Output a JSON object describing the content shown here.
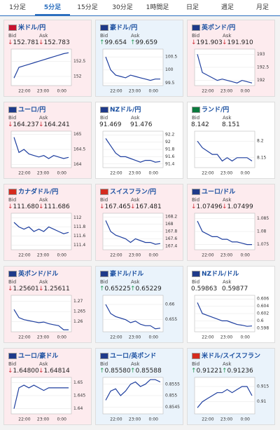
{
  "tabs": [
    "1分足",
    "5分足",
    "15分足",
    "30分足",
    "1時間足",
    "日足",
    "週足",
    "月足"
  ],
  "active_tab": 1,
  "labels": {
    "bid": "Bid",
    "ask": "Ask"
  },
  "xtick_labels": [
    "22:00",
    "23:00",
    "0:00"
  ],
  "cards": [
    {
      "name": "米ドル/円",
      "arrow": "↓",
      "trend": "down",
      "bid": "152.781",
      "ask": "152.783",
      "ylim": [
        151.7,
        152.9
      ],
      "yticks": [
        152,
        152.5
      ],
      "values": [
        151.95,
        152.3,
        152.35,
        152.4,
        152.45,
        152.5,
        152.55,
        152.6,
        152.65,
        152.7,
        152.75,
        152.78
      ]
    },
    {
      "name": "豪ドル/円",
      "arrow": "↑",
      "trend": "up",
      "bid": "99.654",
      "ask": "99.659",
      "ylim": [
        99.4,
        100.8
      ],
      "yticks": [
        99.5,
        100,
        100.5
      ],
      "values": [
        100.5,
        100.0,
        99.8,
        99.75,
        99.7,
        99.8,
        99.75,
        99.7,
        99.65,
        99.6,
        99.65,
        99.65
      ]
    },
    {
      "name": "英ポンド/円",
      "arrow": "↓",
      "trend": "down",
      "bid": "191.903",
      "ask": "191.910",
      "ylim": [
        191.8,
        193.2
      ],
      "yticks": [
        192,
        192.5,
        193
      ],
      "values": [
        193.0,
        192.3,
        192.2,
        192.1,
        192.0,
        192.05,
        192.0,
        191.95,
        191.9,
        192.0,
        191.95,
        191.9
      ]
    },
    {
      "name": "ユーロ/円",
      "arrow": "↓",
      "trend": "down",
      "bid": "164.237",
      "ask": "164.241",
      "ylim": [
        163.9,
        165.1
      ],
      "yticks": [
        164,
        164.5,
        165
      ],
      "values": [
        164.9,
        164.4,
        164.5,
        164.35,
        164.3,
        164.25,
        164.3,
        164.2,
        164.3,
        164.25,
        164.2,
        164.24
      ]
    },
    {
      "name": "NZドル/円",
      "trend": "none",
      "bid": "91.469",
      "ask": "91.476",
      "ylim": [
        91.3,
        92.3
      ],
      "yticks": [
        91.4,
        91.6,
        91.8,
        92,
        92.2
      ],
      "values": [
        92.1,
        91.9,
        91.7,
        91.6,
        91.6,
        91.55,
        91.5,
        91.45,
        91.5,
        91.5,
        91.45,
        91.47
      ]
    },
    {
      "name": "ランド/円",
      "trend": "none",
      "bid": "8.142",
      "ask": "8.151",
      "ylim": [
        8.12,
        8.23
      ],
      "yticks": [
        8.15,
        8.2
      ],
      "values": [
        8.2,
        8.18,
        8.17,
        8.16,
        8.16,
        8.14,
        8.15,
        8.14,
        8.15,
        8.15,
        8.15,
        8.14
      ]
    },
    {
      "name": "カナダドル/円",
      "arrow": "↓",
      "trend": "down",
      "bid": "111.680",
      "ask": "111.686",
      "ylim": [
        111.3,
        112.1
      ],
      "yticks": [
        111.4,
        111.6,
        111.8,
        112
      ],
      "values": [
        111.9,
        111.8,
        111.75,
        111.8,
        111.7,
        111.75,
        111.7,
        111.8,
        111.75,
        111.7,
        111.65,
        111.68
      ]
    },
    {
      "name": "スイスフラン/円",
      "arrow": "↓",
      "trend": "down",
      "bid": "167.465",
      "ask": "167.481",
      "ylim": [
        167.3,
        168.3
      ],
      "yticks": [
        167.4,
        167.6,
        167.8,
        168,
        168.2
      ],
      "values": [
        168.1,
        167.8,
        167.7,
        167.65,
        167.6,
        167.5,
        167.6,
        167.55,
        167.5,
        167.5,
        167.45,
        167.47
      ]
    },
    {
      "name": "ユーロ/ドル",
      "arrow": "↓",
      "trend": "down",
      "bid": "1.07496",
      "ask": "1.07499",
      "ylim": [
        1.073,
        1.087
      ],
      "yticks": [
        1.075,
        1.08,
        1.085
      ],
      "values": [
        1.084,
        1.08,
        1.079,
        1.078,
        1.078,
        1.077,
        1.077,
        1.076,
        1.076,
        1.0755,
        1.075,
        1.075
      ]
    },
    {
      "name": "英ポンド/ドル",
      "arrow": "↓",
      "trend": "down",
      "bid": "1.25601",
      "ask": "1.25611",
      "ylim": [
        1.255,
        1.273
      ],
      "yticks": [
        1.26,
        1.265,
        1.27
      ],
      "values": [
        1.266,
        1.262,
        1.261,
        1.2605,
        1.26,
        1.2595,
        1.2598,
        1.259,
        1.2585,
        1.258,
        1.256,
        1.256
      ]
    },
    {
      "name": "豪ドル/ドル",
      "arrow": "↑",
      "trend": "up",
      "bid": "0.65225",
      "ask": "0.65229",
      "ylim": [
        0.651,
        0.663
      ],
      "yticks": [
        0.655,
        0.66
      ],
      "values": [
        0.66,
        0.657,
        0.656,
        0.6555,
        0.655,
        0.654,
        0.6545,
        0.6535,
        0.653,
        0.653,
        0.652,
        0.6522
      ]
    },
    {
      "name": "NZドル/ドル",
      "trend": "none",
      "bid": "0.59863",
      "ask": "0.59877",
      "ylim": [
        0.597,
        0.607
      ],
      "yticks": [
        0.598,
        0.6,
        0.602,
        0.604,
        0.606
      ],
      "values": [
        0.605,
        0.602,
        0.6015,
        0.601,
        0.6005,
        0.6,
        0.6,
        0.5995,
        0.599,
        0.5988,
        0.5985,
        0.5986
      ]
    },
    {
      "name": "ユーロ/豪ドル",
      "arrow": "↓",
      "trend": "down",
      "bid": "1.64800",
      "ask": "1.64814",
      "ylim": [
        1.638,
        1.652
      ],
      "yticks": [
        1.64,
        1.645,
        1.65
      ],
      "values": [
        1.64,
        1.648,
        1.649,
        1.648,
        1.649,
        1.648,
        1.647,
        1.648,
        1.648,
        1.648,
        1.648,
        1.648
      ]
    },
    {
      "name": "ユーロ/英ポンド",
      "arrow": "↑",
      "trend": "up",
      "bid": "0.85580",
      "ask": "0.85588",
      "ylim": [
        0.8542,
        0.8558
      ],
      "yticks": [
        0.8545,
        0.855,
        0.8555
      ],
      "values": [
        0.8548,
        0.8552,
        0.8553,
        0.855,
        0.8552,
        0.8555,
        0.8556,
        0.8554,
        0.8555,
        0.8557,
        0.8557,
        0.8556
      ]
    },
    {
      "name": "米ドル/スイスフラン",
      "arrow": "↑",
      "trend": "up",
      "bid": "0.91221",
      "ask": "0.91236",
      "ylim": [
        0.906,
        0.918
      ],
      "yticks": [
        0.91,
        0.915
      ],
      "values": [
        0.908,
        0.91,
        0.911,
        0.912,
        0.913,
        0.913,
        0.914,
        0.913,
        0.914,
        0.915,
        0.915,
        0.912
      ]
    }
  ]
}
